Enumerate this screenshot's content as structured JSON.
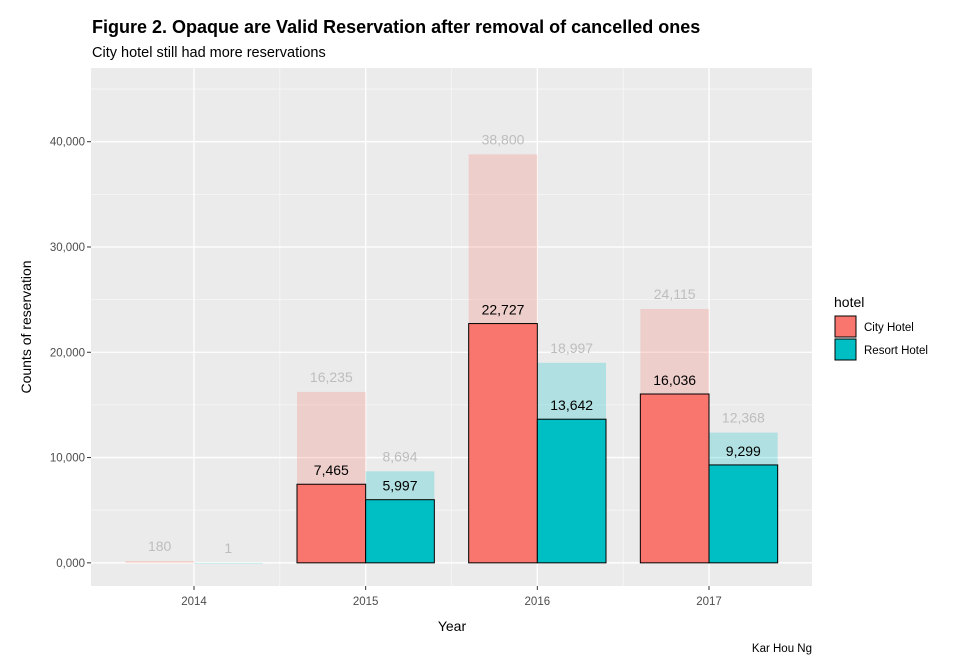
{
  "chart_data": {
    "type": "bar",
    "title": "Figure 2. Opaque are Valid Reservation after removal of cancelled ones",
    "subtitle": "City hotel still had more reservations",
    "xlabel": "Year",
    "ylabel": "Counts of reservation",
    "caption": "Kar Hou Ng",
    "categories": [
      "2014",
      "2015",
      "2016",
      "2017"
    ],
    "ylim": [
      -2200,
      47000
    ],
    "yticks": [
      0,
      10000,
      20000,
      30000,
      40000
    ],
    "ytick_labels": [
      "0,000",
      "10,000",
      "20,000",
      "30,000",
      "40,000"
    ],
    "legend": {
      "title": "hotel",
      "position": "right"
    },
    "grid": true,
    "series": [
      {
        "name": "City Hotel",
        "color": "#F8766D",
        "total": [
          180,
          16235,
          38800,
          24115
        ],
        "total_labels": [
          "180",
          "16,235",
          "38,800",
          "24,115"
        ],
        "valid": [
          null,
          7465,
          22727,
          16036
        ],
        "valid_labels": [
          "",
          "7,465",
          "22,727",
          "16,036"
        ]
      },
      {
        "name": "Resort Hotel",
        "color": "#00BFC4",
        "total": [
          1,
          8694,
          18997,
          12368
        ],
        "total_labels": [
          "1",
          "8,694",
          "18,997",
          "12,368"
        ],
        "valid": [
          null,
          5997,
          13642,
          9299
        ],
        "valid_labels": [
          "",
          "5,997",
          "13,642",
          "9,299"
        ]
      }
    ]
  }
}
